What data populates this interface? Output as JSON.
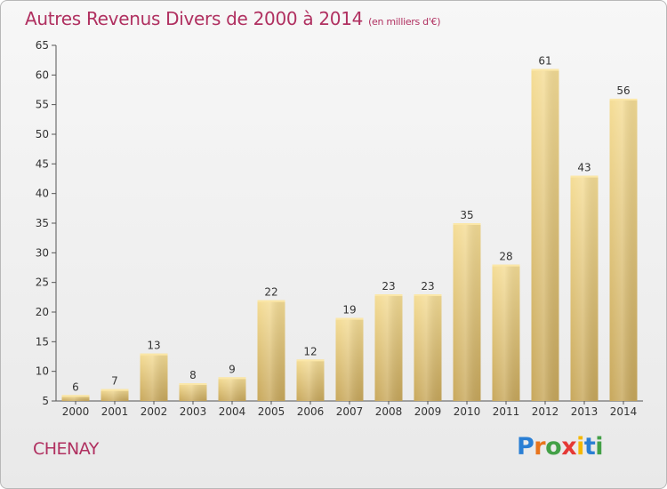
{
  "header": {
    "title": "Autres Revenus Divers de 2000 à 2014",
    "unit": "(en milliers d'€)"
  },
  "footer": {
    "commune": "CHENAY",
    "logo": {
      "text": "Proxiti",
      "letter_colors": [
        "#2a7fd4",
        "#e8741c",
        "#43a047",
        "#e53935",
        "#f5b800",
        "#2a7fd4",
        "#43a047"
      ]
    }
  },
  "chart_data": {
    "type": "bar",
    "title": "Autres Revenus Divers de 2000 à 2014",
    "subtitle": "(en milliers d'€)",
    "categories": [
      "2000",
      "2001",
      "2002",
      "2003",
      "2004",
      "2005",
      "2006",
      "2007",
      "2008",
      "2009",
      "2010",
      "2011",
      "2012",
      "2013",
      "2014"
    ],
    "values": [
      6,
      7,
      13,
      8,
      9,
      22,
      12,
      19,
      23,
      23,
      35,
      28,
      61,
      43,
      56
    ],
    "ylim": [
      5,
      65
    ],
    "yticks": [
      5,
      10,
      15,
      20,
      25,
      30,
      35,
      40,
      45,
      50,
      55,
      60,
      65
    ],
    "grid": false,
    "data_labels": true,
    "bar_color": "#e8cf86",
    "axis_color": "#555555"
  }
}
